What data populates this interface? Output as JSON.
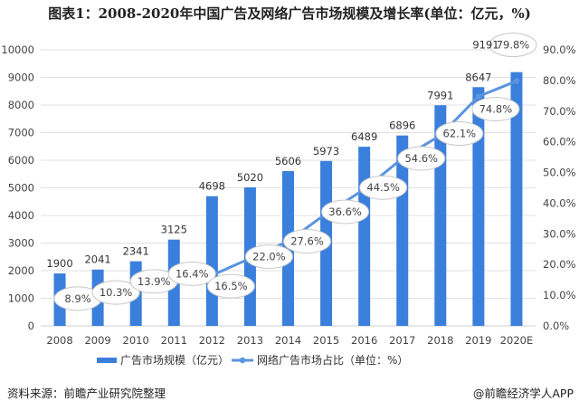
{
  "title": "图表1：2008-2020年中国广告及网络广告市场规模及增长率(单位：亿元，%)",
  "source": "资料来源：前瞻产业研究院整理",
  "credit": "@前瞻经济学人APP",
  "chart_data": {
    "type": "bar+line",
    "categories": [
      "2008",
      "2009",
      "2010",
      "2011",
      "2012",
      "2013",
      "2014",
      "2015",
      "2016",
      "2017",
      "2018",
      "2019",
      "2020E"
    ],
    "series": [
      {
        "name": "广告市场规模（亿元）",
        "type": "bar",
        "axis": "left",
        "color": "#3b7fdc",
        "values": [
          1900,
          2041,
          2341,
          3125,
          4698,
          5020,
          5606,
          5973,
          6489,
          6896,
          7991,
          8647,
          9191
        ],
        "labels": [
          "1900",
          "2041",
          "2341",
          "3125",
          "4698",
          "5020",
          "5606",
          "5973",
          "6489",
          "6896",
          "7991",
          "8647",
          "9191"
        ]
      },
      {
        "name": "网络广告市场占比（单位：%）",
        "type": "line",
        "axis": "right",
        "color": "#5b93e0",
        "values": [
          8.9,
          10.3,
          13.9,
          16.4,
          16.5,
          22.0,
          27.6,
          36.6,
          44.5,
          54.6,
          62.1,
          74.8,
          79.8
        ],
        "labels": [
          "8.9%",
          "10.3%",
          "13.9%",
          "16.4%",
          "16.5%",
          "22.0%",
          "27.6%",
          "36.6%",
          "44.5%",
          "54.6%",
          "62.1%",
          "74.8%",
          "79.8%"
        ]
      }
    ],
    "left_axis": {
      "min": 0,
      "max": 10000,
      "step": 1000,
      "ticks": [
        "0",
        "1000",
        "2000",
        "3000",
        "4000",
        "5000",
        "6000",
        "7000",
        "8000",
        "9000",
        "10000"
      ]
    },
    "right_axis": {
      "min": 0,
      "max": 90,
      "step": 10,
      "ticks": [
        "0.0%",
        "10.0%",
        "20.0%",
        "30.0%",
        "40.0%",
        "50.0%",
        "60.0%",
        "70.0%",
        "80.0%",
        "90.0%"
      ]
    },
    "grid": true,
    "legend": "bottom-center"
  }
}
